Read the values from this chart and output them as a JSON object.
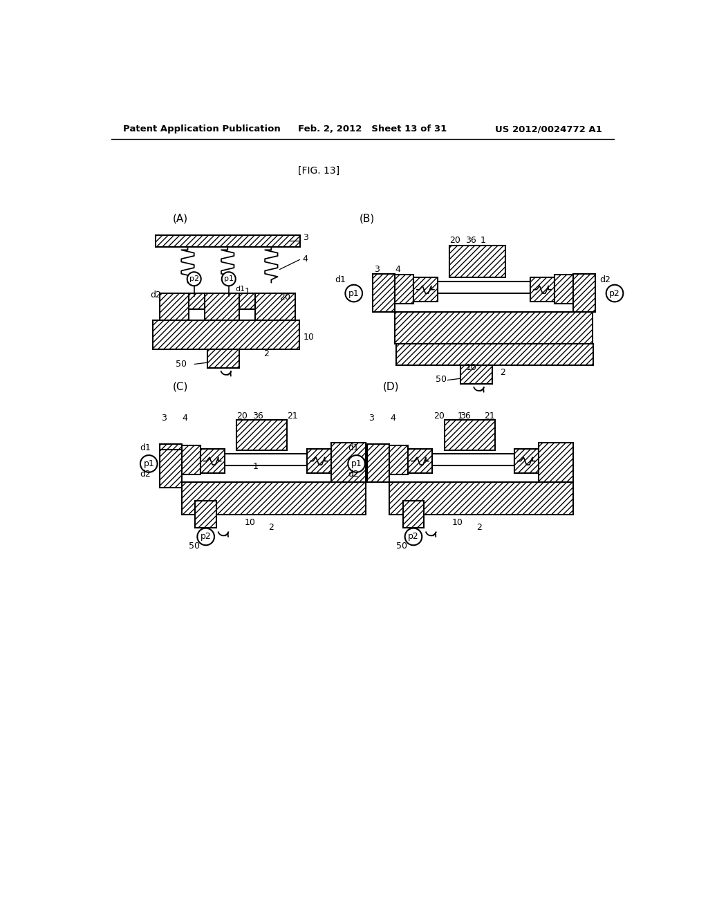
{
  "header_left": "Patent Application Publication",
  "header_mid": "Feb. 2, 2012   Sheet 13 of 31",
  "header_right": "US 2012/0024772 A1",
  "fig_label": "[FIG. 13]",
  "bg_color": "#ffffff",
  "line_color": "#000000"
}
